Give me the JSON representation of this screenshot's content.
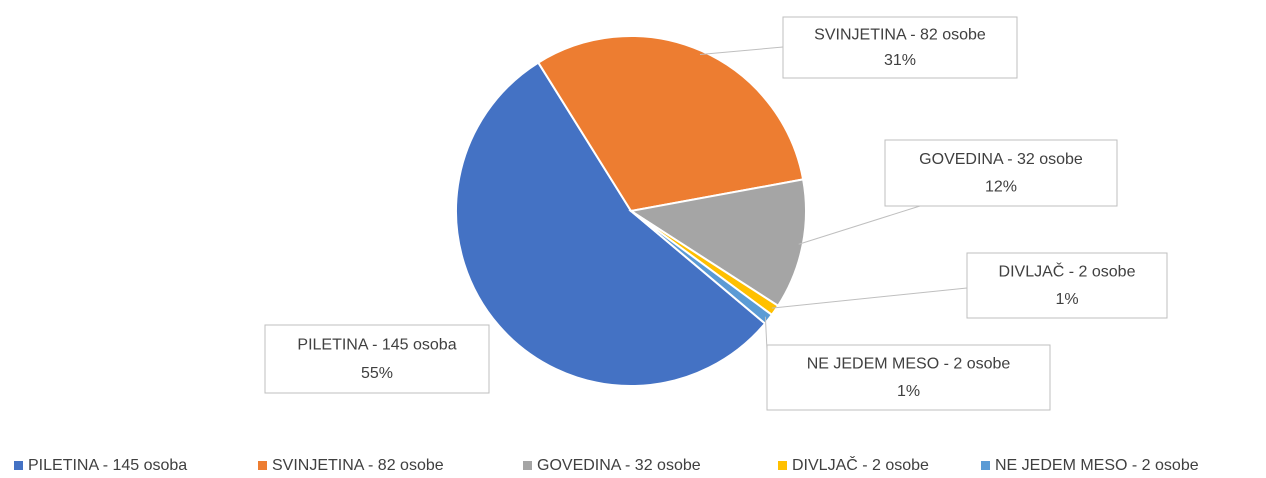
{
  "chart_data": {
    "type": "pie",
    "categories": [
      "PILETINA - 145 osoba",
      "SVINJETINA - 82 osobe",
      "GOVEDINA - 32 osobe",
      "DIVLJAČ - 2 osobe",
      "NE JEDEM MESO - 2 osobe"
    ],
    "values": [
      55,
      31,
      12,
      1,
      1
    ],
    "value_labels": [
      "55%",
      "31%",
      "12%",
      "1%",
      "1%"
    ],
    "colors": [
      "#4472c4",
      "#ed7d31",
      "#a5a5a5",
      "#ffc000",
      "#5b9bd5"
    ],
    "start_angle": 130,
    "legend": "bottom"
  }
}
